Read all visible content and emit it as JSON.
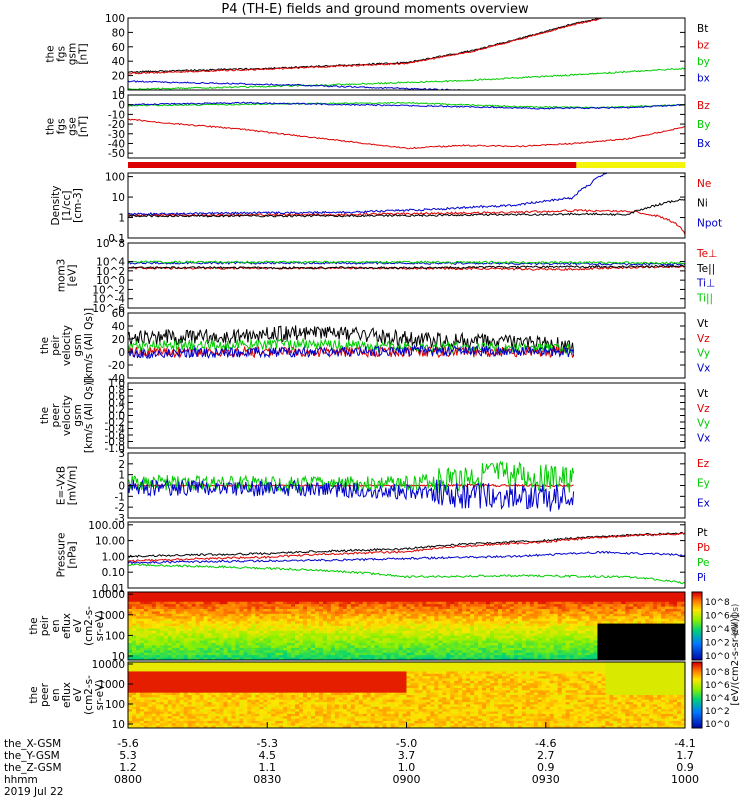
{
  "title": "P4 (TH-E) fields and ground moments overview",
  "time_axis": {
    "ticks": [
      {
        "hhmm": "0800",
        "x_gsm": "-5.6",
        "y_gsm": "5.3",
        "z_gsm": "1.2"
      },
      {
        "hhmm": "0830",
        "x_gsm": "-5.3",
        "y_gsm": "4.5",
        "z_gsm": "1.1"
      },
      {
        "hhmm": "0900",
        "x_gsm": "-5.0",
        "y_gsm": "3.7",
        "z_gsm": "1.0"
      },
      {
        "hhmm": "0930",
        "x_gsm": "-4.6",
        "y_gsm": "2.7",
        "z_gsm": "0.9"
      },
      {
        "hhmm": "1000",
        "x_gsm": "-4.1",
        "y_gsm": "1.7",
        "z_gsm": "0.9"
      }
    ],
    "row_labels": [
      "the_X-GSM",
      "the_Y-GSM",
      "the_Z-GSM",
      "hhmm"
    ],
    "date": "2019 Jul 22"
  },
  "colors": {
    "black": "#000000",
    "red": "#dd0000",
    "green": "#00cc00",
    "blue": "#0000cc",
    "yellow": "#f5f50a"
  },
  "chart_data": [
    {
      "type": "line",
      "id": "fgs_gsm",
      "ylabel": [
        "the",
        "fgs",
        "gsm",
        "[nT]"
      ],
      "ylim": [
        0,
        100
      ],
      "yticks": [
        "100",
        "80",
        "60",
        "40",
        "20",
        "0"
      ],
      "series": [
        {
          "name": "Bt",
          "color": "black",
          "x": [
            0,
            0.25,
            0.5,
            0.62,
            0.72,
            0.8,
            0.85
          ],
          "values": [
            25,
            30,
            38,
            55,
            75,
            92,
            100
          ]
        },
        {
          "name": "bz",
          "color": "red",
          "x": [
            0,
            0.25,
            0.5,
            0.62,
            0.72,
            0.8,
            0.85
          ],
          "values": [
            23,
            29,
            37,
            54,
            74,
            91,
            99
          ]
        },
        {
          "name": "by",
          "color": "green",
          "x": [
            0,
            0.2,
            0.4,
            0.6,
            0.8,
            1.0
          ],
          "values": [
            1,
            4,
            8,
            13,
            21,
            30
          ]
        },
        {
          "name": "bx",
          "color": "blue",
          "x": [
            0,
            0.3,
            0.5,
            0.7,
            1.0
          ],
          "values": [
            12,
            7,
            2,
            -3,
            -6
          ]
        }
      ]
    },
    {
      "type": "line",
      "id": "fgs_gse",
      "ylabel": [
        "the",
        "fgs",
        "gse",
        "[nT]"
      ],
      "ylim": [
        -55,
        10
      ],
      "yticks": [
        "10",
        "0",
        "-10",
        "-20",
        "-30",
        "-40",
        "-50"
      ],
      "series": [
        {
          "name": "Bz",
          "color": "red",
          "x": [
            0,
            0.05,
            0.2,
            0.35,
            0.5,
            0.6,
            0.7,
            0.8,
            0.9,
            1.0
          ],
          "values": [
            -15,
            -18,
            -25,
            -35,
            -45,
            -42,
            -43,
            -40,
            -35,
            -23
          ]
        },
        {
          "name": "By",
          "color": "green",
          "x": [
            0,
            0.3,
            0.5,
            0.7,
            0.85,
            1.0
          ],
          "values": [
            -1,
            1,
            2,
            -2,
            -3,
            0
          ]
        },
        {
          "name": "Bx",
          "color": "blue",
          "x": [
            0,
            0.2,
            0.4,
            0.6,
            0.75,
            0.9,
            1.0
          ],
          "values": [
            0,
            2,
            0,
            -2,
            -4,
            -3,
            0
          ]
        }
      ]
    },
    {
      "type": "bar",
      "id": "mode_bar",
      "segments": [
        {
          "label": "",
          "from": 0,
          "to": 0.805,
          "color": "red"
        },
        {
          "label": "",
          "from": 0.805,
          "to": 1.0,
          "color": "yellow"
        }
      ]
    },
    {
      "type": "line",
      "id": "density",
      "ylabel": [
        "Density",
        "[1/cc]",
        "[cm-3]"
      ],
      "scale": "log",
      "ylim": [
        0.1,
        150
      ],
      "yticks": [
        "100",
        "10",
        "1",
        "0.1"
      ],
      "series": [
        {
          "name": "Ne",
          "color": "red",
          "x": [
            0,
            0.4,
            0.7,
            0.8,
            0.9,
            0.95,
            1.0
          ],
          "values": [
            1.3,
            1.4,
            1.8,
            2.2,
            2.0,
            1.2,
            0.15
          ]
        },
        {
          "name": "Ni",
          "color": "black",
          "x": [
            0,
            0.4,
            0.7,
            0.82,
            0.9,
            0.95,
            1.0
          ],
          "values": [
            1.2,
            1.2,
            1.4,
            1.5,
            1.4,
            4.0,
            8.0
          ]
        },
        {
          "name": "Npot",
          "color": "blue",
          "x": [
            0,
            0.4,
            0.55,
            0.7,
            0.8,
            0.83,
            0.86
          ],
          "values": [
            1.5,
            1.8,
            2.5,
            4.0,
            9.0,
            40,
            150
          ]
        }
      ]
    },
    {
      "type": "line",
      "id": "temperature",
      "ylabel": [
        "mom3",
        "[eV]"
      ],
      "scale": "log",
      "ylim": [
        1e-06,
        100000000.0
      ],
      "yticks": [
        "10^8",
        "10^4",
        "10^2",
        "10^0",
        "10^-2",
        "10^-4",
        "10^-6"
      ],
      "series": [
        {
          "name": "Te⊥",
          "color": "red",
          "x": [
            0,
            0.5,
            0.8,
            1.0
          ],
          "values": [
            400,
            350,
            200,
            900
          ]
        },
        {
          "name": "Te||",
          "color": "black",
          "x": [
            0,
            0.5,
            1.0
          ],
          "values": [
            500,
            450,
            1000
          ]
        },
        {
          "name": "Ti⊥",
          "color": "blue",
          "x": [
            0,
            0.5,
            0.85,
            1.0
          ],
          "values": [
            5000,
            4500,
            3000,
            2500
          ]
        },
        {
          "name": "Ti||",
          "color": "green",
          "x": [
            0,
            0.5,
            0.85,
            1.0
          ],
          "values": [
            8000,
            7500,
            6000,
            5000
          ]
        }
      ]
    },
    {
      "type": "line",
      "id": "peir_velocity",
      "ylabel": [
        "the",
        "peir",
        "velocity",
        "gsm",
        "[km/s (All Qs)]"
      ],
      "ylim": [
        -40,
        60
      ],
      "yticks": [
        "60",
        "40",
        "20",
        "0",
        "-20",
        "-40"
      ],
      "x_end": 0.8,
      "series": [
        {
          "name": "Vt",
          "color": "black",
          "x": [
            0,
            0.2,
            0.35,
            0.5,
            0.65,
            0.8
          ],
          "values": [
            22,
            24,
            32,
            20,
            15,
            10
          ]
        },
        {
          "name": "Vz",
          "color": "red",
          "x": [
            0,
            0.8
          ],
          "values": [
            0,
            0
          ]
        },
        {
          "name": "Vy",
          "color": "green",
          "x": [
            0,
            0.3,
            0.5,
            0.8
          ],
          "values": [
            10,
            12,
            8,
            5
          ]
        },
        {
          "name": "Vx",
          "color": "blue",
          "x": [
            0,
            0.3,
            0.6,
            0.8
          ],
          "values": [
            -2,
            0,
            2,
            0
          ]
        }
      ]
    },
    {
      "type": "line",
      "id": "peer_velocity",
      "ylabel": [
        "the",
        "peer",
        "velocity",
        "gsm",
        "[km/s (All Qs)]"
      ],
      "ylim": [
        -1,
        1
      ],
      "yticks": [
        "1.0",
        "0.8",
        "0.6",
        "0.4",
        "0.2",
        "0.0",
        "-0.2",
        "-0.4",
        "-0.6",
        "-0.8",
        "-1.0"
      ],
      "series": [
        {
          "name": "Vt",
          "color": "black",
          "x": [],
          "values": []
        },
        {
          "name": "Vz",
          "color": "red",
          "x": [],
          "values": []
        },
        {
          "name": "Vy",
          "color": "green",
          "x": [],
          "values": []
        },
        {
          "name": "Vx",
          "color": "blue",
          "x": [],
          "values": []
        }
      ]
    },
    {
      "type": "line",
      "id": "efield",
      "ylabel": [
        "E=-VxB",
        "[mV/m]"
      ],
      "ylim": [
        -3,
        3
      ],
      "yticks": [
        "3",
        "2",
        "1",
        "0",
        "-1",
        "-2",
        "-3"
      ],
      "x_end": 0.8,
      "series": [
        {
          "name": "Ez",
          "color": "red",
          "x": [
            0,
            0.8
          ],
          "values": [
            0,
            0
          ]
        },
        {
          "name": "Ey",
          "color": "green",
          "x": [
            0,
            0.3,
            0.5,
            0.65,
            0.8
          ],
          "values": [
            0.3,
            0.1,
            0.2,
            1.0,
            0.5
          ]
        },
        {
          "name": "Ex",
          "color": "blue",
          "x": [
            0,
            0.3,
            0.5,
            0.65,
            0.8
          ],
          "values": [
            -0.2,
            -0.3,
            -0.6,
            -1.0,
            -1.2
          ]
        }
      ]
    },
    {
      "type": "line",
      "id": "pressure",
      "ylabel": [
        "Pressure",
        "[nPa]"
      ],
      "scale": "log",
      "ylim": [
        0.01,
        150
      ],
      "yticks": [
        "100.00",
        "10.00",
        "1.00",
        "0.10",
        "0.01"
      ],
      "series": [
        {
          "name": "Pt",
          "color": "black",
          "x": [
            0,
            0.25,
            0.5,
            0.75,
            1.0
          ],
          "values": [
            1.0,
            1.5,
            3.0,
            10,
            30
          ]
        },
        {
          "name": "Pb",
          "color": "red",
          "x": [
            0,
            0.25,
            0.5,
            0.75,
            1.0
          ],
          "values": [
            0.5,
            0.9,
            2.0,
            8,
            28
          ]
        },
        {
          "name": "Pe",
          "color": "green",
          "x": [
            0,
            0.2,
            0.4,
            0.5,
            0.7,
            0.9,
            1.0
          ],
          "values": [
            0.3,
            0.2,
            0.1,
            0.05,
            0.06,
            0.05,
            0.02
          ]
        },
        {
          "name": "Pi",
          "color": "blue",
          "x": [
            0,
            0.4,
            0.7,
            0.85,
            1.0
          ],
          "values": [
            0.4,
            0.6,
            1.0,
            1.8,
            1.2
          ]
        }
      ]
    },
    {
      "type": "heatmap",
      "id": "peir_spec",
      "ylabel": [
        "the",
        "peir",
        "en",
        "eflux",
        "eV",
        "(cm2-s-",
        "sr-eV)"
      ],
      "yticks": [
        "10000",
        "1000",
        "100",
        "10"
      ],
      "colorbar": "[eV/(cm2-s-sr-eV)]"
    },
    {
      "type": "heatmap",
      "id": "peer_spec",
      "ylabel": [
        "the",
        "peer",
        "en",
        "eflux",
        "eV",
        "(cm2-s-",
        "sr-eV)"
      ],
      "yticks": [
        "10000",
        "1000",
        "100",
        "10"
      ],
      "colorbar": "[eV/(cm2-s-sr-eV)]"
    }
  ],
  "colorbar_ticks": [
    "10^8",
    "10^6",
    "10^4",
    "10^2",
    "10^0"
  ],
  "colorbar_title": "[eV/(cm2-s-sr-eV)]",
  "colorbar_overlay": "(All Qs)"
}
